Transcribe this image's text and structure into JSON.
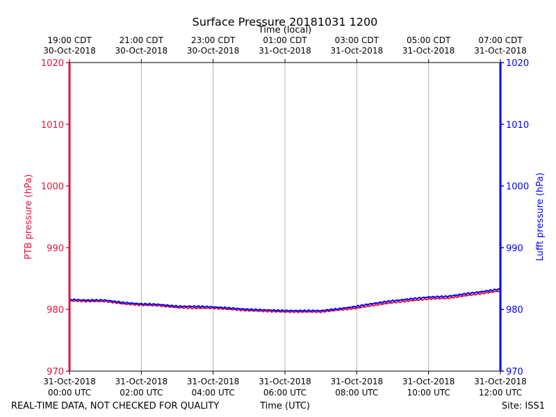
{
  "chart_data": {
    "type": "line",
    "title": "Surface Pressure 20181031 1200",
    "top_xlabel": "Time (local)",
    "xlabel": "Time (UTC)",
    "ylabel_left": "PTB pressure (hPa)",
    "ylabel_right": "Lufft pressure (hPa)",
    "ylim": [
      970,
      1020
    ],
    "yticks": [
      970,
      980,
      990,
      1000,
      1010,
      1020
    ],
    "xlim_hours": [
      0,
      12
    ],
    "x_ticks_utc": [
      {
        "h": 0,
        "date": "31-Oct-2018",
        "time": "00:00 UTC"
      },
      {
        "h": 2,
        "date": "31-Oct-2018",
        "time": "02:00 UTC"
      },
      {
        "h": 4,
        "date": "31-Oct-2018",
        "time": "04:00 UTC"
      },
      {
        "h": 6,
        "date": "31-Oct-2018",
        "time": "06:00 UTC"
      },
      {
        "h": 8,
        "date": "31-Oct-2018",
        "time": "08:00 UTC"
      },
      {
        "h": 10,
        "date": "31-Oct-2018",
        "time": "10:00 UTC"
      },
      {
        "h": 12,
        "date": "31-Oct-2018",
        "time": "12:00 UTC"
      }
    ],
    "x_ticks_local": [
      {
        "h": 0,
        "time": "19:00 CDT",
        "date": "30-Oct-2018"
      },
      {
        "h": 2,
        "time": "21:00 CDT",
        "date": "30-Oct-2018"
      },
      {
        "h": 4,
        "time": "23:00 CDT",
        "date": "30-Oct-2018"
      },
      {
        "h": 6,
        "time": "01:00 CDT",
        "date": "31-Oct-2018"
      },
      {
        "h": 8,
        "time": "03:00 CDT",
        "date": "31-Oct-2018"
      },
      {
        "h": 10,
        "time": "05:00 CDT",
        "date": "31-Oct-2018"
      },
      {
        "h": 12,
        "time": "07:00 CDT",
        "date": "31-Oct-2018"
      }
    ],
    "grid_x": true,
    "grid_y": false,
    "series": [
      {
        "name": "PTB pressure",
        "color": "#dc143c",
        "x": [
          0,
          0.5,
          1,
          1.5,
          2,
          2.5,
          3,
          3.5,
          4,
          4.5,
          5,
          5.5,
          6,
          6.5,
          7,
          7.5,
          8,
          8.5,
          9,
          9.5,
          10,
          10.5,
          11,
          11.5,
          12
        ],
        "values": [
          981.4,
          981.3,
          981.3,
          980.9,
          980.7,
          980.6,
          980.3,
          980.2,
          980.2,
          980.0,
          979.8,
          979.7,
          979.6,
          979.6,
          979.6,
          979.9,
          980.2,
          980.7,
          981.1,
          981.4,
          981.7,
          981.8,
          982.2,
          982.6,
          983.0
        ]
      },
      {
        "name": "Lufft pressure",
        "color": "#0000ff",
        "x": [
          0,
          0.5,
          1,
          1.5,
          2,
          2.5,
          3,
          3.5,
          4,
          4.5,
          5,
          5.5,
          6,
          6.5,
          7,
          7.5,
          8,
          8.5,
          9,
          9.5,
          10,
          10.5,
          11,
          11.5,
          12
        ],
        "values": [
          981.6,
          981.5,
          981.5,
          981.1,
          980.9,
          980.8,
          980.5,
          980.5,
          980.4,
          980.2,
          980.0,
          979.9,
          979.8,
          979.8,
          979.8,
          980.1,
          980.5,
          981.0,
          981.4,
          981.7,
          982.0,
          982.1,
          982.5,
          982.9,
          983.3
        ]
      }
    ]
  },
  "footer": {
    "left_note": "REAL-TIME DATA, NOT CHECKED FOR QUALITY",
    "site": "Site: ISS1"
  },
  "colors": {
    "left_axis": "#dc143c",
    "right_axis": "#0000ff",
    "grid": "#b0b0b0"
  }
}
